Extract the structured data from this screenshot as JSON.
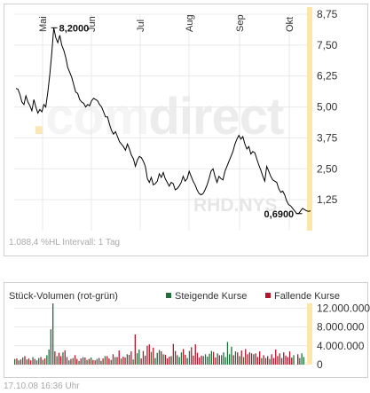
{
  "stats_text": "1.088,4 %HL Intervall: 1 Tag",
  "timestamp": "17.10.08   16:36 Uhr",
  "volume_title": "Stück-Volumen (rot-grün)",
  "watermark": {
    "dot": ".",
    "com": "com",
    "direct": "direct",
    "symbol": "RHD.NYS"
  },
  "colors": {
    "up": "#1f6e3c",
    "down": "#b5162b",
    "line": "#000000",
    "grid": "#e9e9e9",
    "today_band": "#fde7a8"
  },
  "chart_data": [
    {
      "type": "line",
      "title": "",
      "months": [
        "Mai",
        "Jun",
        "Jul",
        "Aug",
        "Sep",
        "Okt"
      ],
      "y_ticks": [
        "8,75",
        "7,50",
        "6,25",
        "5,00",
        "3,75",
        "2,50",
        "1,25"
      ],
      "ylim": [
        0,
        8.75
      ],
      "high_label": "8,2000",
      "low_label": "0,6900",
      "series": [
        {
          "values": [
            5.75,
            5.72,
            5.5,
            5.2,
            5.1,
            5.45,
            5.2,
            5.05,
            4.85,
            5.3,
            5.0,
            4.75,
            4.9,
            4.8,
            5.1,
            5.0,
            5.6,
            6.3,
            7.2,
            8.2,
            7.8,
            7.6,
            7.9,
            7.5,
            7.3,
            7.0,
            6.6,
            6.4,
            6.2,
            5.9,
            5.6,
            5.55,
            5.3,
            5.2,
            5.15,
            5.0,
            5.1,
            5.05,
            5.25,
            5.35,
            5.3,
            5.25,
            5.1,
            5.0,
            4.8,
            4.6,
            4.6,
            4.3,
            4.05,
            3.9,
            4.0,
            3.8,
            3.6,
            3.5,
            3.4,
            3.25,
            3.5,
            3.3,
            3.05,
            2.9,
            2.6,
            2.85,
            3.0,
            2.95,
            2.8,
            2.6,
            2.1,
            1.95,
            2.15,
            1.85,
            1.9,
            2.0,
            2.3,
            2.15,
            2.35,
            2.1,
            1.95,
            1.8,
            1.95,
            1.9,
            1.65,
            1.7,
            1.8,
            1.95,
            2.2,
            2.0,
            2.1,
            2.4,
            2.2,
            2.0,
            1.85,
            1.65,
            1.5,
            1.45,
            1.5,
            1.65,
            1.85,
            2.1,
            2.4,
            2.5,
            2.2,
            1.95,
            2.2,
            2.1,
            2.05,
            2.4,
            2.6,
            2.8,
            3.0,
            3.2,
            3.5,
            3.7,
            3.85,
            3.7,
            3.8,
            3.5,
            3.3,
            3.4,
            3.1,
            3.2,
            3.15,
            2.9,
            2.65,
            2.45,
            2.2,
            2.0,
            2.6,
            2.4,
            2.2,
            2.05,
            2.0,
            1.95,
            1.7,
            1.55,
            1.6,
            1.45,
            1.2,
            1.05,
            1.0,
            0.9,
            0.8,
            0.7,
            0.69,
            0.8,
            0.9,
            0.85,
            0.8,
            0.78,
            0.8
          ]
        }
      ]
    },
    {
      "type": "bar",
      "title": "Stück-Volumen (rot-grün)",
      "legend": [
        "Steigende Kurse",
        "Fallende Kurse"
      ],
      "legend_position": "top-right",
      "y_ticks": [
        "12.000.000",
        "8.000.000",
        "4.000.000",
        "0"
      ],
      "ylim": [
        0,
        13000000
      ],
      "series": [
        {
          "name": "Steigende Kurse",
          "values": [
            1200000,
            0,
            900000,
            0,
            1500000,
            0,
            1100000,
            0,
            0,
            1600000,
            0,
            900000,
            1400000,
            0,
            1000000,
            0,
            2000000,
            3200000,
            7500000,
            13000000,
            0,
            1800000,
            0,
            0,
            2600000,
            0,
            0,
            900000,
            0,
            1400000,
            0,
            0,
            800000,
            0,
            1600000,
            0,
            1000000,
            0,
            1500000,
            0,
            0,
            1200000,
            0,
            800000,
            0,
            1800000,
            0,
            0,
            1000000,
            0,
            1600000,
            0,
            0,
            1300000,
            0,
            0,
            2200000,
            0,
            0,
            1100000,
            0,
            2400000,
            3200000,
            0,
            0,
            0,
            0,
            0,
            2700000,
            0,
            1400000,
            2500000,
            3100000,
            0,
            2200000,
            0,
            0,
            0,
            1800000,
            0,
            0,
            2000000,
            1600000,
            2600000,
            0,
            0,
            1400000,
            2900000,
            0,
            0,
            0,
            0,
            0,
            0,
            1800000,
            2200000,
            1700000,
            2300000,
            2900000,
            0,
            0,
            2400000,
            0,
            2000000,
            2600000,
            1600000,
            4800000,
            2200000,
            3800000,
            0,
            2800000,
            0,
            1800000,
            0,
            1600000,
            0,
            0,
            0,
            0,
            2200000,
            0,
            0,
            0,
            1400000,
            0,
            0,
            0,
            1200000,
            0,
            0,
            0,
            0,
            0,
            0,
            0,
            0,
            0,
            0,
            1500000,
            2000000,
            0,
            1700000,
            1400000,
            2400000,
            1600000
          ]
        },
        {
          "name": "Fallende Kurse",
          "values": [
            0,
            1300000,
            0,
            1100000,
            0,
            1800000,
            0,
            1300000,
            900000,
            0,
            1200000,
            0,
            0,
            1600000,
            0,
            1300000,
            0,
            0,
            0,
            0,
            2800000,
            0,
            2500000,
            1800000,
            0,
            3000000,
            1600000,
            0,
            1200000,
            0,
            2000000,
            1200000,
            0,
            1300000,
            0,
            1500000,
            0,
            1200000,
            0,
            1000000,
            900000,
            0,
            1400000,
            0,
            1300000,
            0,
            1800000,
            1300000,
            0,
            2200000,
            0,
            1600000,
            3000000,
            0,
            1700000,
            1500000,
            0,
            2100000,
            2800000,
            0,
            6400000,
            0,
            0,
            1300000,
            2900000,
            1900000,
            4000000,
            4300000,
            0,
            3600000,
            0,
            0,
            0,
            2800000,
            0,
            2100000,
            1300000,
            1700000,
            0,
            4400000,
            2900000,
            0,
            0,
            0,
            3300000,
            2100000,
            0,
            0,
            3700000,
            1900000,
            4300000,
            2500000,
            1500000,
            1900000,
            0,
            0,
            0,
            0,
            0,
            2700000,
            1500000,
            0,
            2000000,
            0,
            0,
            0,
            0,
            0,
            0,
            2000000,
            0,
            2600000,
            0,
            3000000,
            0,
            3300000,
            2200000,
            2600000,
            2400000,
            0,
            2400000,
            1600000,
            2800000,
            0,
            2000000,
            1400000,
            1800000,
            0,
            2200000,
            1400000,
            3200000,
            1800000,
            2400000,
            1400000,
            2600000,
            1900000,
            1600000,
            2800000,
            1300000,
            0,
            0,
            2200000,
            0,
            0,
            0,
            0
          ]
        }
      ]
    }
  ]
}
